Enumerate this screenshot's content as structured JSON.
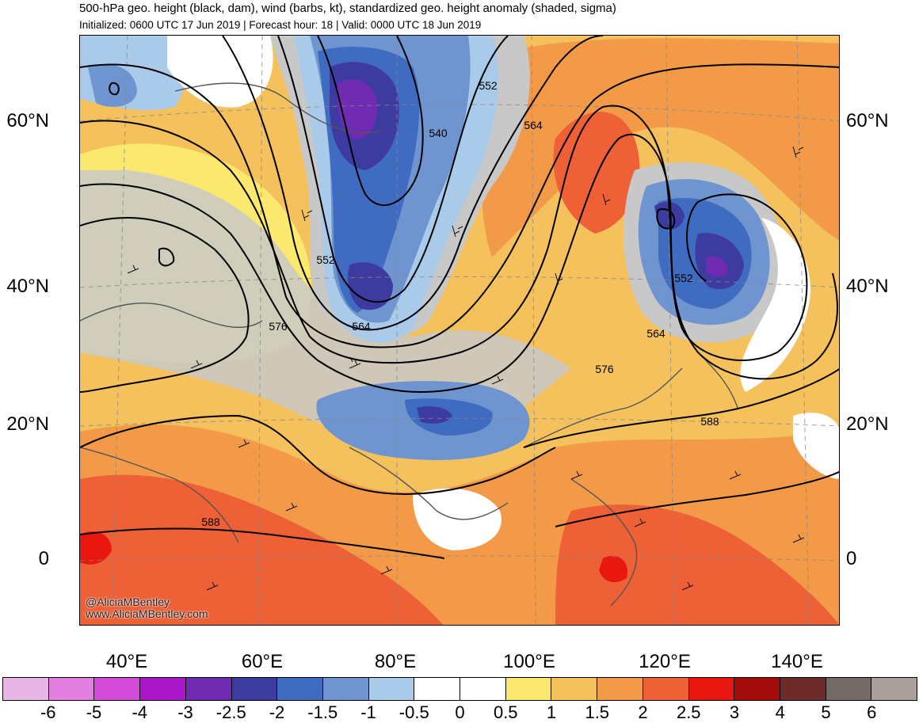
{
  "header": {
    "title": "500-hPa geo. height (black, dam), wind (barbs, kt), standardized geo. height anomaly (shaded, sigma)",
    "subtitle": "Initialized: 0600 UTC 17 Jun 2019 | Forecast hour: 18 | Valid: 0000 UTC 18 Jun 2019"
  },
  "map": {
    "lat_labels": [
      "60°N",
      "40°N",
      "20°N",
      "0"
    ],
    "lon_labels": [
      "40°E",
      "60°E",
      "80°E",
      "100°E",
      "120°E",
      "140°E"
    ],
    "contour_labels": [
      "540",
      "552",
      "564",
      "552",
      "564",
      "576",
      "552",
      "564",
      "576",
      "588",
      "588"
    ],
    "credit_line1": "@AliciaMBentley",
    "credit_line2": "www.AliciaMBentley.com"
  },
  "colorbar": {
    "labels": [
      "-6",
      "-5",
      "-4",
      "-3",
      "-2.5",
      "-2",
      "-1.5",
      "-1",
      "-0.5",
      "0",
      "0.5",
      "1",
      "1.5",
      "2",
      "2.5",
      "3",
      "4",
      "5",
      "6"
    ],
    "colors": [
      "#e8b6e6",
      "#e37fe0",
      "#d24ad6",
      "#a816c8",
      "#6f2cb2",
      "#3d3aa0",
      "#3f6cc0",
      "#6f95d0",
      "#a9cbe9",
      "#ffffff",
      "#ffffff",
      "#fbe86e",
      "#f4c15c",
      "#f29a48",
      "#ee6036",
      "#e8170f",
      "#a30a0a",
      "#6f2b2b",
      "#756a68",
      "#a99f9d"
    ]
  }
}
